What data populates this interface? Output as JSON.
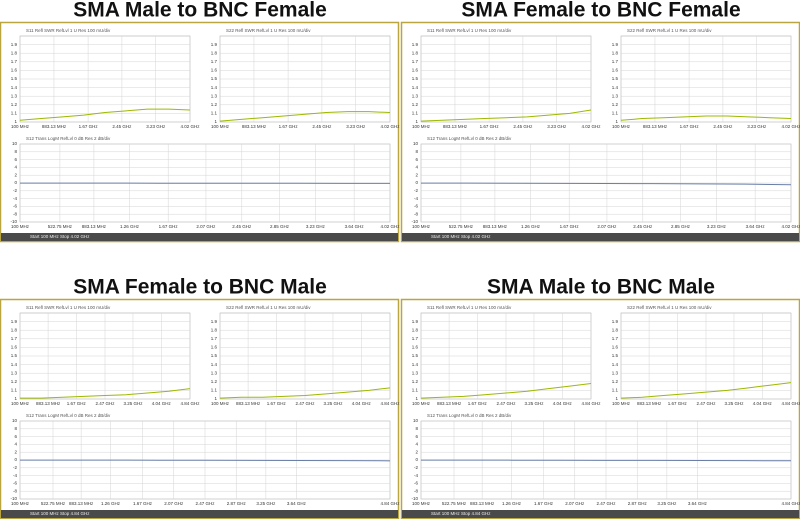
{
  "panels": [
    {
      "title": "SMA Male to BNC Female",
      "status": [
        "Start 100 MHz",
        "Stop 4.02 GHz"
      ]
    },
    {
      "title": "SMA Female to BNC Female",
      "status": [
        "Start 100 MHz",
        "Stop 4.02 GHz"
      ]
    },
    {
      "title": "SMA Female to BNC Male",
      "status": [
        "Start 100 MHz",
        "Stop 4.84 GHz"
      ]
    },
    {
      "title": "SMA Male to BNC Male",
      "status": [
        "Start 100 MHz",
        "Stop 4.84 GHz"
      ]
    }
  ],
  "chart_data": [
    {
      "type": "line",
      "title": "S11 Refl SWR RefLvl 1 U Res 100 mU/div",
      "x": [
        100,
        590,
        1080,
        1570,
        2060,
        2550,
        3040,
        3530,
        4020
      ],
      "series": [
        {
          "color": "#9fb800",
          "values": [
            1.02,
            1.04,
            1.06,
            1.08,
            1.11,
            1.13,
            1.15,
            1.15,
            1.14
          ]
        }
      ],
      "xlim": [
        100,
        4020
      ],
      "xticks": [
        {
          "value": 100,
          "label": "100 MHz"
        },
        {
          "value": 883.13,
          "label": "883.13 MHz"
        },
        {
          "value": 1670,
          "label": "1.67 GHz"
        },
        {
          "value": 2450,
          "label": "2.45 GHz"
        },
        {
          "value": 3230,
          "label": "3.23 GHz"
        },
        {
          "value": 4020,
          "label": "4.02 GHz"
        }
      ],
      "ylim": [
        1,
        2
      ],
      "yticks": [
        1,
        1.1,
        1.2,
        1.3,
        1.4,
        1.5,
        1.6,
        1.7,
        1.8,
        1.9
      ],
      "grid": true
    },
    {
      "type": "line",
      "title": "S22 Refl SWR RefLvl 1 U Res 100 mU/div",
      "x": [
        100,
        590,
        1080,
        1570,
        2060,
        2550,
        3040,
        3530,
        4020
      ],
      "series": [
        {
          "color": "#9fb800",
          "values": [
            1.01,
            1.03,
            1.05,
            1.07,
            1.09,
            1.11,
            1.12,
            1.12,
            1.11
          ]
        }
      ],
      "xlim": [
        100,
        4020
      ],
      "xticks": [
        {
          "value": 100,
          "label": "100 MHz"
        },
        {
          "value": 883.13,
          "label": "883.13 MHz"
        },
        {
          "value": 1670,
          "label": "1.67 GHz"
        },
        {
          "value": 2450,
          "label": "2.45 GHz"
        },
        {
          "value": 3230,
          "label": "3.23 GHz"
        },
        {
          "value": 4020,
          "label": "4.02 GHz"
        }
      ],
      "ylim": [
        1,
        2
      ],
      "yticks": [
        1,
        1.1,
        1.2,
        1.3,
        1.4,
        1.5,
        1.6,
        1.7,
        1.8,
        1.9
      ],
      "grid": true
    },
    {
      "type": "line",
      "title": "S12 Trans LogM RefLvl 0 dB Res 2 dB/div",
      "x": [
        100,
        590,
        1080,
        1570,
        2060,
        2550,
        3040,
        3530,
        4020
      ],
      "series": [
        {
          "color": "#6a7fa8",
          "values": [
            -0.02,
            -0.03,
            -0.04,
            -0.05,
            -0.06,
            -0.07,
            -0.08,
            -0.09,
            -0.1
          ]
        }
      ],
      "xlim": [
        100,
        4020
      ],
      "xticks": [
        {
          "value": 100,
          "label": "100 MHz"
        },
        {
          "value": 522.75,
          "label": "522.75 MHz"
        },
        {
          "value": 883.13,
          "label": "883.13 MHz"
        },
        {
          "value": 1260,
          "label": "1.26 GHz"
        },
        {
          "value": 1670,
          "label": "1.67 GHz"
        },
        {
          "value": 2070,
          "label": "2.07 GHz"
        },
        {
          "value": 2450,
          "label": "2.45 GHz"
        },
        {
          "value": 2850,
          "label": "2.85 GHz"
        },
        {
          "value": 3230,
          "label": "3.23 GHz"
        },
        {
          "value": 3640,
          "label": "3.64 GHz"
        },
        {
          "value": 4020,
          "label": "4.02 GHz"
        }
      ],
      "ylim": [
        -10,
        10
      ],
      "yticks": [
        -10,
        -8,
        -6,
        -4,
        -2,
        0,
        2,
        4,
        6,
        8,
        10
      ],
      "grid": true
    },
    {
      "type": "line",
      "title": "S11 Refl SWR RefLvl 1 U Res 100 mU/div",
      "x": [
        100,
        590,
        1080,
        1570,
        2060,
        2550,
        3040,
        3530,
        4020
      ],
      "series": [
        {
          "color": "#9fb800",
          "values": [
            1.01,
            1.02,
            1.03,
            1.04,
            1.05,
            1.06,
            1.08,
            1.1,
            1.14
          ]
        }
      ],
      "xlim": [
        100,
        4020
      ],
      "xticks": [
        {
          "value": 100,
          "label": "100 MHz"
        },
        {
          "value": 883.13,
          "label": "883.13 MHz"
        },
        {
          "value": 1670,
          "label": "1.67 GHz"
        },
        {
          "value": 2450,
          "label": "2.45 GHz"
        },
        {
          "value": 3230,
          "label": "3.23 GHz"
        },
        {
          "value": 4020,
          "label": "4.02 GHz"
        }
      ],
      "ylim": [
        1,
        2
      ],
      "yticks": [
        1,
        1.1,
        1.2,
        1.3,
        1.4,
        1.5,
        1.6,
        1.7,
        1.8,
        1.9
      ],
      "grid": true
    },
    {
      "type": "line",
      "title": "S22 Refl SWR RefLvl 1 U Res 100 mU/div",
      "x": [
        100,
        590,
        1080,
        1570,
        2060,
        2550,
        3040,
        3530,
        4020
      ],
      "series": [
        {
          "color": "#9fb800",
          "values": [
            1.02,
            1.04,
            1.05,
            1.06,
            1.07,
            1.07,
            1.06,
            1.05,
            1.04
          ]
        }
      ],
      "xlim": [
        100,
        4020
      ],
      "xticks": [
        {
          "value": 100,
          "label": "100 MHz"
        },
        {
          "value": 883.13,
          "label": "883.13 MHz"
        },
        {
          "value": 1670,
          "label": "1.67 GHz"
        },
        {
          "value": 2450,
          "label": "2.45 GHz"
        },
        {
          "value": 3230,
          "label": "3.23 GHz"
        },
        {
          "value": 4020,
          "label": "4.02 GHz"
        }
      ],
      "ylim": [
        1,
        2
      ],
      "yticks": [
        1,
        1.1,
        1.2,
        1.3,
        1.4,
        1.5,
        1.6,
        1.7,
        1.8,
        1.9
      ],
      "grid": true
    },
    {
      "type": "line",
      "title": "S12 Trans LogM RefLvl 0 dB Res 2 dB/div",
      "x": [
        100,
        590,
        1080,
        1570,
        2060,
        2550,
        3040,
        3530,
        4020
      ],
      "series": [
        {
          "color": "#6a7fa8",
          "values": [
            -0.02,
            -0.04,
            -0.06,
            -0.09,
            -0.12,
            -0.16,
            -0.22,
            -0.3,
            -0.45
          ]
        }
      ],
      "xlim": [
        100,
        4020
      ],
      "xticks": [
        {
          "value": 100,
          "label": "100 MHz"
        },
        {
          "value": 522.75,
          "label": "522.75 MHz"
        },
        {
          "value": 883.13,
          "label": "883.13 MHz"
        },
        {
          "value": 1260,
          "label": "1.26 GHz"
        },
        {
          "value": 1670,
          "label": "1.67 GHz"
        },
        {
          "value": 2070,
          "label": "2.07 GHz"
        },
        {
          "value": 2450,
          "label": "2.45 GHz"
        },
        {
          "value": 2850,
          "label": "2.85 GHz"
        },
        {
          "value": 3230,
          "label": "3.23 GHz"
        },
        {
          "value": 3640,
          "label": "3.64 GHz"
        },
        {
          "value": 4020,
          "label": "4.02 GHz"
        }
      ],
      "ylim": [
        -10,
        10
      ],
      "yticks": [
        -10,
        -8,
        -6,
        -4,
        -2,
        0,
        2,
        4,
        6,
        8,
        10
      ],
      "grid": true
    },
    {
      "type": "line",
      "title": "S11 Refl SWR RefLvl 1 U Res 100 mU/div",
      "x": [
        100,
        692,
        1285,
        1877,
        2470,
        3062,
        3655,
        4247,
        4840
      ],
      "series": [
        {
          "color": "#9fb800",
          "values": [
            1.01,
            1.01,
            1.02,
            1.03,
            1.04,
            1.05,
            1.07,
            1.09,
            1.12
          ]
        }
      ],
      "xlim": [
        100,
        4840
      ],
      "xticks": [
        {
          "value": 100,
          "label": "100 MHz"
        },
        {
          "value": 883.13,
          "label": "883.13 MHz"
        },
        {
          "value": 1670,
          "label": "1.67 GHz"
        },
        {
          "value": 2470,
          "label": "2.47 GHz"
        },
        {
          "value": 3250,
          "label": "3.25 GHz"
        },
        {
          "value": 4040,
          "label": "4.04 GHz"
        },
        {
          "value": 4840,
          "label": "4.84 GHz"
        }
      ],
      "ylim": [
        1,
        2
      ],
      "yticks": [
        1,
        1.1,
        1.2,
        1.3,
        1.4,
        1.5,
        1.6,
        1.7,
        1.8,
        1.9
      ],
      "grid": true
    },
    {
      "type": "line",
      "title": "S22 Refl SWR RefLvl 1 U Res 100 mU/div",
      "x": [
        100,
        692,
        1285,
        1877,
        2470,
        3062,
        3655,
        4247,
        4840
      ],
      "series": [
        {
          "color": "#9fb800",
          "values": [
            1.01,
            1.02,
            1.02,
            1.03,
            1.04,
            1.06,
            1.08,
            1.1,
            1.13
          ]
        }
      ],
      "xlim": [
        100,
        4840
      ],
      "xticks": [
        {
          "value": 100,
          "label": "100 MHz"
        },
        {
          "value": 883.13,
          "label": "883.13 MHz"
        },
        {
          "value": 1670,
          "label": "1.67 GHz"
        },
        {
          "value": 2470,
          "label": "2.47 GHz"
        },
        {
          "value": 3250,
          "label": "3.25 GHz"
        },
        {
          "value": 4040,
          "label": "4.04 GHz"
        },
        {
          "value": 4840,
          "label": "4.84 GHz"
        }
      ],
      "ylim": [
        1,
        2
      ],
      "yticks": [
        1,
        1.1,
        1.2,
        1.3,
        1.4,
        1.5,
        1.6,
        1.7,
        1.8,
        1.9
      ],
      "grid": true
    },
    {
      "type": "line",
      "title": "S12 Trans LogM RefLvl 0 dB Res 2 dB/div",
      "x": [
        100,
        692,
        1285,
        1877,
        2470,
        3062,
        3655,
        4247,
        4840
      ],
      "series": [
        {
          "color": "#6a7fa8",
          "values": [
            -0.02,
            -0.03,
            -0.04,
            -0.06,
            -0.08,
            -0.1,
            -0.13,
            -0.16,
            -0.21
          ]
        }
      ],
      "xlim": [
        100,
        4840
      ],
      "xticks": [
        {
          "value": 100,
          "label": "100 MHz"
        },
        {
          "value": 522.75,
          "label": "522.75 MHz"
        },
        {
          "value": 883.13,
          "label": "883.13 MHz"
        },
        {
          "value": 1260,
          "label": "1.26 GHz"
        },
        {
          "value": 1670,
          "label": "1.67 GHz"
        },
        {
          "value": 2070,
          "label": "2.07 GHz"
        },
        {
          "value": 2470,
          "label": "2.47 GHz"
        },
        {
          "value": 2870,
          "label": "2.87 GHz"
        },
        {
          "value": 3250,
          "label": "3.25 GHz"
        },
        {
          "value": 3640,
          "label": "3.64 GHz"
        },
        {
          "value": 4840,
          "label": "4.84 GHz"
        }
      ],
      "ylim": [
        -10,
        10
      ],
      "yticks": [
        -10,
        -8,
        -6,
        -4,
        -2,
        0,
        2,
        4,
        6,
        8,
        10
      ],
      "grid": true
    },
    {
      "type": "line",
      "title": "S11 Refl SWR RefLvl 1 U Res 100 mU/div",
      "x": [
        100,
        692,
        1285,
        1877,
        2470,
        3062,
        3655,
        4247,
        4840
      ],
      "series": [
        {
          "color": "#9fb800",
          "values": [
            1.01,
            1.02,
            1.03,
            1.05,
            1.07,
            1.09,
            1.12,
            1.15,
            1.18
          ]
        }
      ],
      "xlim": [
        100,
        4840
      ],
      "xticks": [
        {
          "value": 100,
          "label": "100 MHz"
        },
        {
          "value": 883.13,
          "label": "883.13 MHz"
        },
        {
          "value": 1670,
          "label": "1.67 GHz"
        },
        {
          "value": 2470,
          "label": "2.47 GHz"
        },
        {
          "value": 3250,
          "label": "3.25 GHz"
        },
        {
          "value": 4040,
          "label": "4.04 GHz"
        },
        {
          "value": 4840,
          "label": "4.84 GHz"
        }
      ],
      "ylim": [
        1,
        2
      ],
      "yticks": [
        1,
        1.1,
        1.2,
        1.3,
        1.4,
        1.5,
        1.6,
        1.7,
        1.8,
        1.9
      ],
      "grid": true
    },
    {
      "type": "line",
      "title": "S22 Refl SWR RefLvl 1 U Res 100 mU/div",
      "x": [
        100,
        692,
        1285,
        1877,
        2470,
        3062,
        3655,
        4247,
        4840
      ],
      "series": [
        {
          "color": "#9fb800",
          "values": [
            1.01,
            1.02,
            1.04,
            1.06,
            1.08,
            1.1,
            1.13,
            1.16,
            1.19
          ]
        }
      ],
      "xlim": [
        100,
        4840
      ],
      "xticks": [
        {
          "value": 100,
          "label": "100 MHz"
        },
        {
          "value": 883.13,
          "label": "883.13 MHz"
        },
        {
          "value": 1670,
          "label": "1.67 GHz"
        },
        {
          "value": 2470,
          "label": "2.47 GHz"
        },
        {
          "value": 3250,
          "label": "3.25 GHz"
        },
        {
          "value": 4040,
          "label": "4.04 GHz"
        },
        {
          "value": 4840,
          "label": "4.84 GHz"
        }
      ],
      "ylim": [
        1,
        2
      ],
      "yticks": [
        1,
        1.1,
        1.2,
        1.3,
        1.4,
        1.5,
        1.6,
        1.7,
        1.8,
        1.9
      ],
      "grid": true
    },
    {
      "type": "line",
      "title": "S12 Trans LogM RefLvl 0 dB Res 2 dB/div",
      "x": [
        100,
        692,
        1285,
        1877,
        2470,
        3062,
        3655,
        4247,
        4840
      ],
      "series": [
        {
          "color": "#6a7fa8",
          "values": [
            -0.02,
            -0.03,
            -0.05,
            -0.07,
            -0.09,
            -0.11,
            -0.14,
            -0.17,
            -0.2
          ]
        }
      ],
      "xlim": [
        100,
        4840
      ],
      "xticks": [
        {
          "value": 100,
          "label": "100 MHz"
        },
        {
          "value": 522.75,
          "label": "522.75 MHz"
        },
        {
          "value": 883.13,
          "label": "883.13 MHz"
        },
        {
          "value": 1260,
          "label": "1.26 GHz"
        },
        {
          "value": 1670,
          "label": "1.67 GHz"
        },
        {
          "value": 2070,
          "label": "2.07 GHz"
        },
        {
          "value": 2470,
          "label": "2.47 GHz"
        },
        {
          "value": 2870,
          "label": "2.87 GHz"
        },
        {
          "value": 3250,
          "label": "3.25 GHz"
        },
        {
          "value": 3640,
          "label": "3.64 GHz"
        },
        {
          "value": 4840,
          "label": "4.84 GHz"
        }
      ],
      "ylim": [
        -10,
        10
      ],
      "yticks": [
        -10,
        -8,
        -6,
        -4,
        -2,
        0,
        2,
        4,
        6,
        8,
        10
      ],
      "grid": true
    }
  ]
}
